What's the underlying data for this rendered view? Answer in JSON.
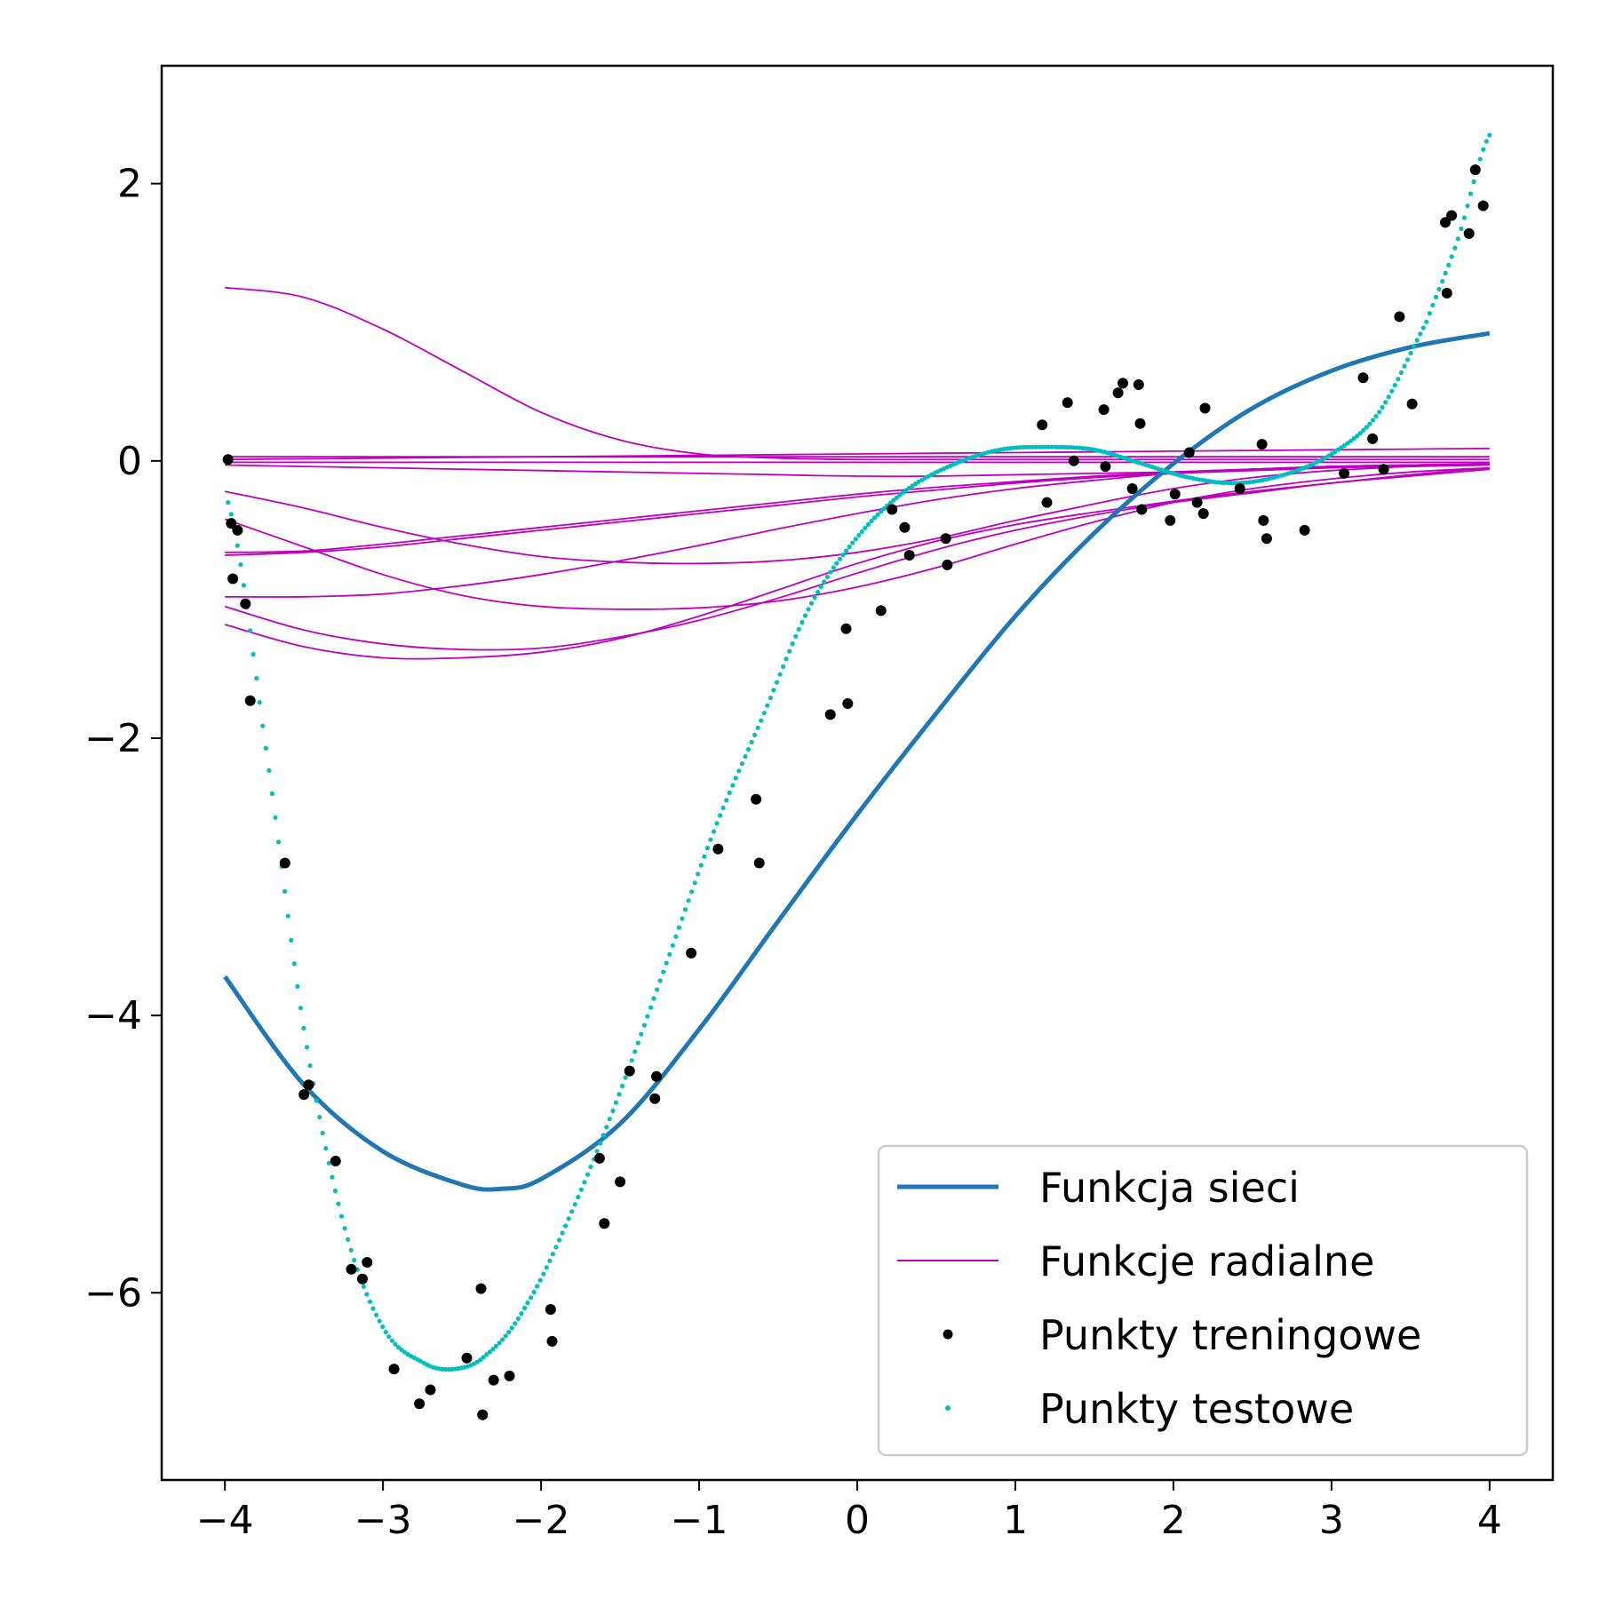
{
  "chart_data": {
    "type": "line",
    "title": "",
    "xlabel": "",
    "ylabel": "",
    "xlim": [
      -4.4,
      4.4
    ],
    "ylim": [
      -7.35,
      2.85
    ],
    "x_ticks": [
      -4,
      -3,
      -2,
      -1,
      0,
      1,
      2,
      3,
      4
    ],
    "x_tick_labels": [
      "−4",
      "−3",
      "−2",
      "−1",
      "0",
      "1",
      "2",
      "3",
      "4"
    ],
    "y_ticks": [
      2,
      0,
      -2,
      -4,
      -6
    ],
    "y_tick_labels": [
      "2",
      "0",
      "−2",
      "−4",
      "−6"
    ],
    "grid": false,
    "legend_position": "lower-right",
    "legend": [
      "Funkcja sieci",
      "Funkcje radialne",
      "Punkty treningowe",
      "Punkty testowe"
    ],
    "colors": {
      "network": "#1f77b4",
      "radial": "#bf00bf",
      "train": "#000000",
      "test": "#00bfbf"
    },
    "network_function": {
      "name": "Funkcja sieci",
      "x": [
        -4.0,
        -3.5,
        -3.0,
        -2.5,
        -2.25,
        -2.0,
        -1.5,
        -1.0,
        -0.5,
        0.0,
        0.5,
        1.0,
        1.5,
        2.0,
        2.5,
        3.0,
        3.5,
        4.0
      ],
      "y": [
        -3.72,
        -4.5,
        -4.98,
        -5.22,
        -5.25,
        -5.18,
        -4.78,
        -4.1,
        -3.32,
        -2.55,
        -1.82,
        -1.12,
        -0.52,
        -0.02,
        0.38,
        0.65,
        0.82,
        0.92
      ]
    },
    "radial_functions": {
      "name": "Funkcje radialne",
      "x": [
        -4,
        -3.5,
        -3,
        -2.5,
        -2,
        -1.5,
        -1,
        -0.5,
        0,
        0.5,
        1,
        1.5,
        2,
        2.5,
        3,
        3.5,
        4
      ],
      "curves": [
        [
          1.25,
          1.18,
          0.95,
          0.65,
          0.35,
          0.15,
          0.05,
          0.02,
          0.01,
          0.01,
          0.01,
          0.01,
          0.01,
          0.01,
          0.01,
          0.01,
          0.01
        ],
        [
          0.01,
          0.015,
          0.02,
          0.025,
          0.03,
          0.035,
          0.04,
          0.045,
          0.05,
          0.055,
          0.06,
          0.065,
          0.07,
          0.075,
          0.08,
          0.085,
          0.09
        ],
        [
          0.03,
          0.03,
          0.03,
          0.03,
          0.03,
          0.03,
          0.03,
          0.03,
          0.03,
          0.03,
          0.03,
          0.03,
          0.03,
          0.03,
          0.03,
          0.03,
          0.03
        ],
        [
          -0.01,
          -0.01,
          -0.01,
          -0.01,
          -0.01,
          -0.01,
          -0.01,
          -0.01,
          -0.01,
          -0.01,
          -0.01,
          -0.01,
          -0.01,
          -0.01,
          -0.01,
          -0.01,
          -0.01
        ],
        [
          -0.03,
          -0.04,
          -0.05,
          -0.06,
          -0.07,
          -0.08,
          -0.09,
          -0.1,
          -0.11,
          -0.11,
          -0.1,
          -0.09,
          -0.08,
          -0.06,
          -0.04,
          -0.03,
          -0.02
        ],
        [
          -0.68,
          -0.66,
          -0.62,
          -0.56,
          -0.5,
          -0.44,
          -0.38,
          -0.32,
          -0.26,
          -0.21,
          -0.16,
          -0.12,
          -0.09,
          -0.07,
          -0.05,
          -0.04,
          -0.03
        ],
        [
          -0.66,
          -0.65,
          -0.6,
          -0.54,
          -0.48,
          -0.42,
          -0.36,
          -0.3,
          -0.24,
          -0.19,
          -0.15,
          -0.11,
          -0.08,
          -0.06,
          -0.04,
          -0.03,
          -0.02
        ],
        [
          -0.98,
          -0.98,
          -0.96,
          -0.9,
          -0.82,
          -0.72,
          -0.61,
          -0.49,
          -0.38,
          -0.28,
          -0.2,
          -0.14,
          -0.09,
          -0.06,
          -0.04,
          -0.03,
          -0.02
        ],
        [
          -0.22,
          -0.34,
          -0.48,
          -0.6,
          -0.69,
          -0.73,
          -0.74,
          -0.72,
          -0.66,
          -0.56,
          -0.43,
          -0.31,
          -0.2,
          -0.12,
          -0.07,
          -0.04,
          -0.02
        ],
        [
          -0.42,
          -0.62,
          -0.82,
          -0.97,
          -1.05,
          -1.07,
          -1.06,
          -1.01,
          -0.91,
          -0.77,
          -0.6,
          -0.44,
          -0.3,
          -0.2,
          -0.13,
          -0.08,
          -0.05
        ],
        [
          -1.05,
          -1.22,
          -1.32,
          -1.36,
          -1.35,
          -1.27,
          -1.15,
          -0.99,
          -0.81,
          -0.64,
          -0.5,
          -0.39,
          -0.3,
          -0.23,
          -0.16,
          -0.11,
          -0.06
        ],
        [
          -1.18,
          -1.34,
          -1.42,
          -1.42,
          -1.38,
          -1.28,
          -1.12,
          -0.93,
          -0.74,
          -0.58,
          -0.46,
          -0.37,
          -0.29,
          -0.22,
          -0.16,
          -0.1,
          -0.05
        ]
      ]
    },
    "training_points": {
      "name": "Punkty treningowe",
      "x": [
        -3.98,
        -3.96,
        -3.95,
        -3.92,
        -3.87,
        -3.84,
        -3.62,
        -3.5,
        -3.47,
        -3.3,
        -3.2,
        -3.13,
        -3.1,
        -2.93,
        -2.77,
        -2.7,
        -2.47,
        -2.38,
        -2.37,
        -2.3,
        -2.2,
        -1.94,
        -1.93,
        -1.63,
        -1.6,
        -1.5,
        -1.44,
        -1.28,
        -1.27,
        -1.05,
        -0.88,
        -0.64,
        -0.62,
        -0.17,
        -0.07,
        -0.06,
        0.15,
        0.22,
        0.3,
        0.33,
        0.56,
        0.57,
        1.17,
        1.2,
        1.33,
        1.37,
        1.56,
        1.57,
        1.65,
        1.68,
        1.74,
        1.78,
        1.79,
        1.8,
        1.98,
        2.01,
        2.1,
        2.15,
        2.19,
        2.2,
        2.42,
        2.56,
        2.57,
        2.59,
        2.83,
        3.08,
        3.2,
        3.26,
        3.33,
        3.43,
        3.51,
        3.72,
        3.73,
        3.76,
        3.87,
        3.91,
        3.96
      ],
      "y": [
        0.01,
        -0.45,
        -0.85,
        -0.5,
        -1.03,
        -1.73,
        -2.9,
        -4.57,
        -4.5,
        -5.05,
        -5.83,
        -5.9,
        -5.78,
        -6.55,
        -6.8,
        -6.7,
        -6.47,
        -5.97,
        -6.88,
        -6.63,
        -6.6,
        -6.12,
        -6.35,
        -5.03,
        -5.5,
        -5.2,
        -4.4,
        -4.6,
        -4.44,
        -3.55,
        -2.8,
        -2.44,
        -2.9,
        -1.83,
        -1.21,
        -1.75,
        -1.08,
        -0.35,
        -0.48,
        -0.68,
        -0.56,
        -0.75,
        0.26,
        -0.3,
        0.42,
        0.0,
        0.37,
        -0.04,
        0.49,
        0.56,
        -0.2,
        0.55,
        0.27,
        -0.35,
        -0.43,
        -0.24,
        0.06,
        -0.3,
        -0.38,
        0.38,
        -0.2,
        0.12,
        -0.43,
        -0.56,
        -0.5,
        -0.09,
        0.6,
        0.16,
        -0.06,
        1.04,
        0.41,
        1.72,
        1.21,
        1.77,
        1.64,
        2.1,
        1.84
      ]
    },
    "test_points": {
      "name": "Punkty testowe"
    }
  }
}
